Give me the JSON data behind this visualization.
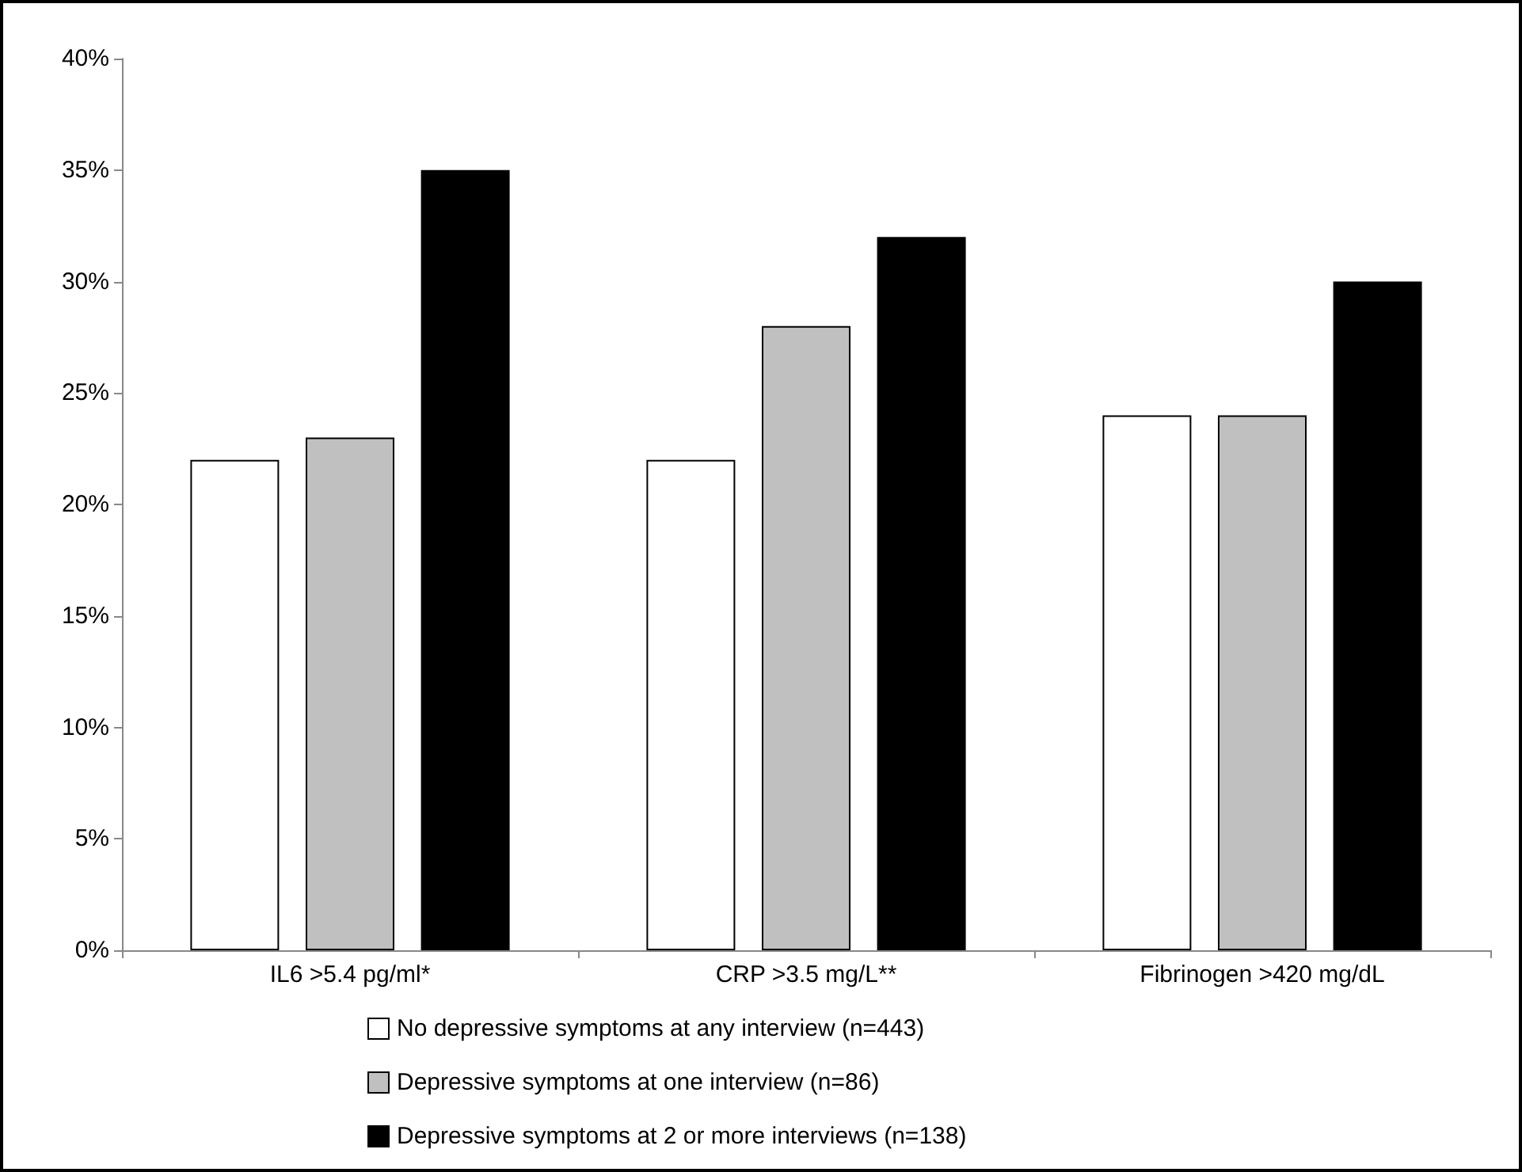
{
  "chart_data": {
    "type": "bar",
    "categories": [
      "IL6 >5.4 pg/ml*",
      "CRP >3.5 mg/L**",
      "Fibrinogen >420 mg/dL"
    ],
    "series": [
      {
        "name": "No depressive symptoms at any interview (n=443)",
        "color": "#ffffff",
        "values": [
          22,
          22,
          24
        ]
      },
      {
        "name": "Depressive symptoms at one interview (n=86)",
        "color": "#c0c0c0",
        "values": [
          23,
          28,
          24
        ]
      },
      {
        "name": "Depressive symptoms at 2 or more interviews (n=138)",
        "color": "#000000",
        "values": [
          35,
          32,
          30
        ]
      }
    ],
    "ylim": [
      0,
      40
    ],
    "yticks": [
      {
        "value": 0,
        "label": "0%"
      },
      {
        "value": 5,
        "label": "5%"
      },
      {
        "value": 10,
        "label": "10%"
      },
      {
        "value": 15,
        "label": "15%"
      },
      {
        "value": 20,
        "label": "20%"
      },
      {
        "value": 25,
        "label": "25%"
      },
      {
        "value": 30,
        "label": "30%"
      },
      {
        "value": 35,
        "label": "35%"
      },
      {
        "value": 40,
        "label": "40%"
      }
    ],
    "grid": false,
    "legend": "bottom"
  }
}
